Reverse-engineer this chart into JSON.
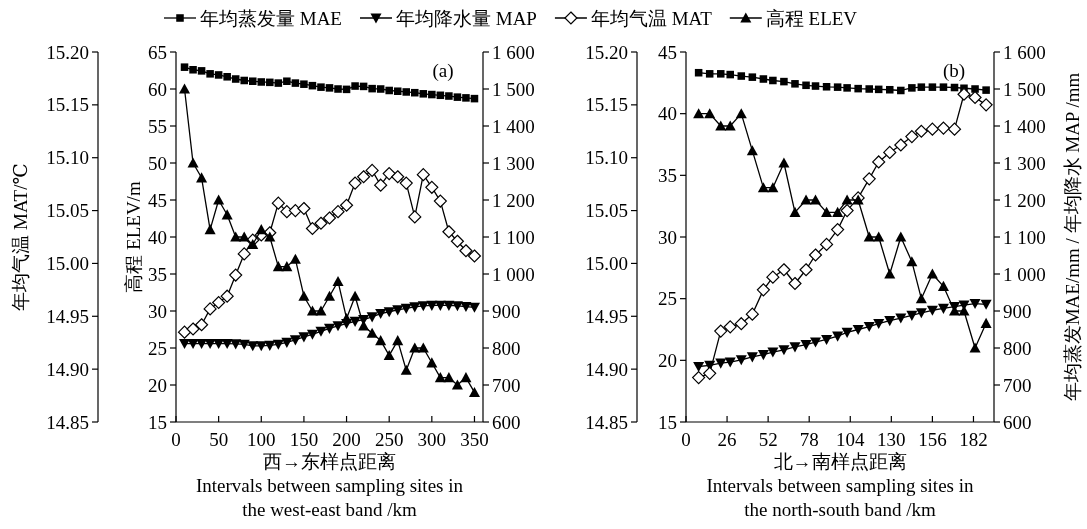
{
  "chart_data": [
    {
      "type": "line",
      "legend": "top",
      "annotations": [
        "(a)"
      ],
      "xlabel": "西→东样点距离\nIntervals between sampling sites in\nthe west-east band /km",
      "ylabel": "高程 ELEV/m",
      "y3label": "年均气温 MAT/℃",
      "x": [
        10,
        20,
        30,
        40,
        50,
        60,
        70,
        80,
        90,
        100,
        110,
        120,
        130,
        140,
        150,
        160,
        170,
        180,
        190,
        200,
        210,
        220,
        230,
        240,
        250,
        260,
        270,
        280,
        290,
        300,
        310,
        320,
        330,
        340,
        350
      ],
      "xlim": [
        0,
        360
      ],
      "xticks": [
        0,
        50,
        100,
        150,
        200,
        250,
        300,
        350
      ],
      "ylim": [
        15,
        65
      ],
      "yticks": [
        15,
        20,
        25,
        30,
        35,
        40,
        45,
        50,
        55,
        60,
        65
      ],
      "y2lim": [
        600,
        1600
      ],
      "y2ticks": [
        600,
        700,
        800,
        900,
        {
          "value": 1000,
          "label": "1 000"
        },
        {
          "value": 1100,
          "label": "1 100"
        },
        {
          "value": 1200,
          "label": "1 200"
        },
        {
          "value": 1300,
          "label": "1 300"
        },
        {
          "value": 1400,
          "label": "1 400"
        },
        {
          "value": 1500,
          "label": "1 500"
        },
        {
          "value": 1600,
          "label": "1 600"
        }
      ],
      "y3lim": [
        14.85,
        15.2
      ],
      "y3ticks": [
        {
          "value": 14.85,
          "label": "14.85"
        },
        {
          "value": 14.9,
          "label": "14.90"
        },
        {
          "value": 14.95,
          "label": "14.95"
        },
        {
          "value": 15.0,
          "label": "15.00"
        },
        {
          "value": 15.05,
          "label": "15.05"
        },
        {
          "value": 15.1,
          "label": "15.10"
        },
        {
          "value": 15.15,
          "label": "15.15"
        },
        {
          "value": 15.2,
          "label": "15.20"
        }
      ],
      "series": [
        {
          "name": "年均蒸发量 MAE",
          "color": "#000000",
          "marker": "square",
          "axis": "y2",
          "values": [
            1559,
            1552,
            1549,
            1541,
            1538,
            1533,
            1527,
            1523,
            1521,
            1519,
            1518,
            1516,
            1521,
            1516,
            1513,
            1509,
            1505,
            1503,
            1500,
            1499,
            1508,
            1507,
            1501,
            1500,
            1496,
            1494,
            1492,
            1490,
            1487,
            1485,
            1483,
            1481,
            1478,
            1476,
            1474
          ]
        },
        {
          "name": "年均降水量 MAP",
          "color": "#000000",
          "marker": "triangle-down",
          "axis": "y2",
          "values": [
            812,
            812,
            812,
            812,
            812,
            812,
            811,
            810,
            806,
            806,
            807,
            810,
            815,
            822,
            830,
            837,
            845,
            853,
            860,
            866,
            872,
            877,
            884,
            893,
            898,
            903,
            907,
            911,
            914,
            915,
            915,
            915,
            914,
            912,
            910
          ]
        },
        {
          "name": "年均气温 MAT",
          "color": "#000000",
          "marker": "diamond-open",
          "axis": "y3",
          "values": [
            14.935,
            14.938,
            14.942,
            14.957,
            14.963,
            14.969,
            14.989,
            15.009,
            15.022,
            15.027,
            15.029,
            15.057,
            15.049,
            15.05,
            15.052,
            15.033,
            15.038,
            15.043,
            15.049,
            15.055,
            15.076,
            15.082,
            15.088,
            15.074,
            15.085,
            15.082,
            15.076,
            15.044,
            15.084,
            15.072,
            15.059,
            15.03,
            15.021,
            15.012,
            15.007
          ]
        },
        {
          "name": "高程 ELEV",
          "color": "#000000",
          "marker": "triangle",
          "axis": "y",
          "values": [
            60,
            50,
            48,
            41,
            45,
            43,
            40,
            40,
            39,
            41,
            40,
            36,
            36,
            37,
            32,
            30,
            30,
            32,
            34,
            29,
            32,
            28,
            27,
            26,
            24,
            26,
            22,
            25,
            25,
            23,
            21,
            21,
            20,
            21,
            19
          ]
        }
      ]
    },
    {
      "type": "line",
      "annotations": [
        "(b)"
      ],
      "xlabel": "北→南样点距离\nIntervals between sampling sites in\nthe north-south band /km",
      "y2label": "年均蒸发MAE/mm / 年均降水 MAP /mm",
      "x": [
        8,
        15,
        22,
        28,
        35,
        42,
        49,
        55,
        62,
        69,
        76,
        82,
        89,
        96,
        102,
        109,
        116,
        122,
        129,
        136,
        143,
        149,
        156,
        163,
        170,
        176,
        183,
        190
      ],
      "xlim": [
        0,
        195
      ],
      "xticks": [
        0,
        26,
        52,
        78,
        104,
        130,
        156,
        182
      ],
      "ylim": [
        15,
        45
      ],
      "yticks": [
        15,
        20,
        25,
        30,
        35,
        40,
        45
      ],
      "y2lim": [
        600,
        1600
      ],
      "y2ticks": [
        600,
        700,
        800,
        900,
        {
          "value": 1000,
          "label": "1 000"
        },
        {
          "value": 1100,
          "label": "1 100"
        },
        {
          "value": 1200,
          "label": "1 200"
        },
        {
          "value": 1300,
          "label": "1 300"
        },
        {
          "value": 1400,
          "label": "1 400"
        },
        {
          "value": 1500,
          "label": "1 500"
        },
        {
          "value": 1600,
          "label": "1 600"
        }
      ],
      "y3lim": [
        14.85,
        15.2
      ],
      "y3ticks": [
        {
          "value": 14.85,
          "label": "14.85"
        },
        {
          "value": 14.9,
          "label": "14.90"
        },
        {
          "value": 14.95,
          "label": "14.95"
        },
        {
          "value": 15.0,
          "label": "15.00"
        },
        {
          "value": 15.05,
          "label": "15.05"
        },
        {
          "value": 15.1,
          "label": "15.10"
        },
        {
          "value": 15.15,
          "label": "15.15"
        },
        {
          "value": 15.2,
          "label": "15.20"
        }
      ],
      "series": [
        {
          "color": "#000000",
          "marker": "square",
          "axis": "y2",
          "values": [
            1544,
            1541,
            1541,
            1539,
            1535,
            1532,
            1527,
            1523,
            1520,
            1514,
            1510,
            1508,
            1506,
            1505,
            1503,
            1501,
            1500,
            1499,
            1498,
            1496,
            1503,
            1505,
            1505,
            1505,
            1504,
            1502,
            1500,
            1497
          ]
        },
        {
          "color": "#000000",
          "marker": "triangle-down",
          "axis": "y2",
          "values": [
            750,
            753,
            759,
            762,
            768,
            776,
            782,
            789,
            795,
            803,
            809,
            816,
            823,
            832,
            842,
            850,
            858,
            866,
            874,
            881,
            888,
            895,
            902,
            907,
            912,
            916,
            920,
            918
          ]
        },
        {
          "color": "#000000",
          "marker": "diamond-open",
          "axis": "y3",
          "values": [
            14.892,
            14.896,
            14.936,
            14.94,
            14.943,
            14.952,
            14.975,
            14.987,
            14.994,
            14.981,
            14.994,
            15.008,
            15.018,
            15.032,
            15.05,
            15.062,
            15.08,
            15.096,
            15.105,
            15.112,
            15.12,
            15.125,
            15.127,
            15.128,
            15.127,
            15.16,
            15.157,
            15.15
          ]
        },
        {
          "color": "#000000",
          "marker": "triangle",
          "axis": "y",
          "values": [
            40,
            40,
            39,
            39,
            40,
            37,
            34,
            34,
            36,
            32,
            33,
            33,
            32,
            32,
            33,
            33,
            30,
            30,
            27,
            30,
            28,
            25,
            27,
            26,
            24,
            24,
            21,
            23
          ]
        }
      ]
    }
  ]
}
